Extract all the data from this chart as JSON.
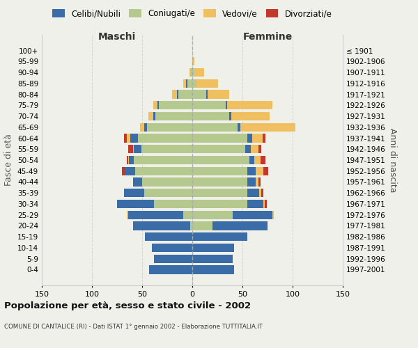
{
  "age_groups": [
    "0-4",
    "5-9",
    "10-14",
    "15-19",
    "20-24",
    "25-29",
    "30-34",
    "35-39",
    "40-44",
    "45-49",
    "50-54",
    "55-59",
    "60-64",
    "65-69",
    "70-74",
    "75-79",
    "80-84",
    "85-89",
    "90-94",
    "95-99",
    "100+"
  ],
  "birth_years": [
    "1997-2001",
    "1992-1996",
    "1987-1991",
    "1982-1986",
    "1977-1981",
    "1972-1976",
    "1967-1971",
    "1962-1966",
    "1957-1961",
    "1952-1956",
    "1947-1951",
    "1942-1946",
    "1937-1941",
    "1932-1936",
    "1927-1931",
    "1922-1926",
    "1917-1921",
    "1912-1916",
    "1907-1911",
    "1902-1906",
    "≤ 1901"
  ],
  "maschi": {
    "celibi": [
      43,
      38,
      40,
      47,
      57,
      55,
      37,
      20,
      8,
      10,
      5,
      7,
      8,
      3,
      2,
      2,
      1,
      1,
      0,
      0,
      0
    ],
    "coniugati": [
      0,
      0,
      0,
      0,
      2,
      9,
      38,
      48,
      50,
      57,
      58,
      51,
      54,
      45,
      37,
      33,
      14,
      5,
      2,
      0,
      0
    ],
    "vedovi": [
      0,
      0,
      0,
      0,
      0,
      1,
      0,
      0,
      0,
      0,
      1,
      1,
      3,
      4,
      5,
      4,
      5,
      3,
      1,
      0,
      0
    ],
    "divorziati": [
      0,
      0,
      0,
      0,
      0,
      0,
      0,
      0,
      1,
      3,
      1,
      5,
      3,
      0,
      0,
      0,
      0,
      0,
      0,
      0,
      0
    ]
  },
  "femmine": {
    "nubili": [
      42,
      40,
      42,
      55,
      55,
      40,
      16,
      12,
      8,
      8,
      5,
      5,
      5,
      3,
      2,
      2,
      1,
      0,
      0,
      0,
      0
    ],
    "coniugate": [
      0,
      0,
      0,
      0,
      20,
      40,
      55,
      55,
      55,
      55,
      57,
      53,
      55,
      45,
      37,
      33,
      14,
      4,
      2,
      0,
      0
    ],
    "vedove": [
      0,
      0,
      0,
      0,
      0,
      1,
      1,
      2,
      3,
      8,
      6,
      8,
      10,
      55,
      38,
      45,
      22,
      22,
      10,
      2,
      0
    ],
    "divorziate": [
      0,
      0,
      0,
      0,
      0,
      0,
      2,
      2,
      2,
      5,
      5,
      3,
      3,
      0,
      0,
      0,
      0,
      0,
      0,
      0,
      0
    ]
  },
  "colors": {
    "celibi": "#3a6da8",
    "coniugati": "#b5c98e",
    "vedovi": "#f0c060",
    "divorziati": "#c0392b"
  },
  "title": "Popolazione per età, sesso e stato civile - 2002",
  "subtitle": "COMUNE DI CANTALICE (RI) - Dati ISTAT 1° gennaio 2002 - Elaborazione TUTTITALIA.IT",
  "xlabel_left": "Maschi",
  "xlabel_right": "Femmine",
  "ylabel_left": "Fasce di età",
  "ylabel_right": "Anni di nascita",
  "xlim": 150,
  "bg_color": "#f0f0eb"
}
